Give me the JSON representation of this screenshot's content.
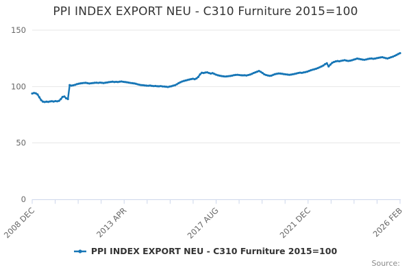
{
  "page": {
    "title": "PPI INDEX EXPORT NEU - C310 Furniture 2015=100",
    "source_label": "Source:"
  },
  "legend": {
    "label": "PPI INDEX EXPORT NEU - C310 Furniture 2015=100"
  },
  "chart_data": {
    "type": "line",
    "title": "PPI INDEX EXPORT NEU - C310 Furniture 2015=100",
    "xlabel": "",
    "ylabel": "",
    "ylim": [
      0,
      150
    ],
    "y_ticks": [
      0,
      50,
      100,
      150
    ],
    "grid": true,
    "legend_position": "bottom",
    "x_tick_labels": [
      "2008 DEC",
      "2013 APR",
      "2017 AUG",
      "2021 DEC",
      "2026 FEB"
    ],
    "minor_tick_intervals": 16,
    "series": [
      {
        "name": "PPI INDEX EXPORT NEU - C310 Furniture 2015=100",
        "color": "#1776b6",
        "frequency": "monthly",
        "start": "2008 DEC",
        "end": "2026 FEB",
        "values": [
          93.8,
          94.3,
          94.0,
          93.0,
          90.5,
          88.0,
          86.6,
          86.3,
          86.6,
          86.4,
          86.8,
          87.0,
          86.7,
          87.1,
          86.9,
          87.3,
          88.8,
          90.8,
          91.2,
          89.6,
          88.9,
          101.3,
          100.8,
          101.1,
          101.5,
          102.1,
          102.5,
          102.8,
          103.0,
          103.2,
          103.3,
          103.0,
          102.7,
          102.9,
          103.1,
          103.3,
          103.4,
          103.2,
          103.5,
          103.3,
          103.1,
          103.4,
          103.6,
          103.9,
          104.1,
          104.3,
          104.0,
          104.2,
          104.0,
          104.3,
          104.5,
          104.2,
          104.0,
          103.8,
          103.5,
          103.2,
          103.0,
          102.8,
          102.5,
          102.0,
          101.6,
          101.3,
          101.2,
          101.0,
          100.8,
          100.7,
          100.9,
          100.6,
          100.4,
          100.5,
          100.3,
          100.2,
          100.4,
          100.1,
          100.0,
          99.8,
          99.6,
          100.0,
          100.3,
          100.8,
          101.2,
          102.0,
          103.0,
          103.8,
          104.5,
          105.0,
          105.4,
          105.8,
          106.2,
          106.6,
          106.9,
          106.5,
          107.2,
          108.5,
          110.8,
          112.2,
          112.0,
          112.4,
          112.6,
          112.0,
          111.5,
          111.9,
          111.2,
          110.5,
          110.0,
          109.6,
          109.3,
          109.1,
          108.9,
          109.0,
          109.2,
          109.4,
          109.7,
          110.1,
          110.3,
          110.4,
          110.2,
          110.0,
          109.9,
          110.0,
          109.8,
          110.2,
          110.6,
          111.2,
          112.0,
          112.6,
          113.2,
          113.8,
          113.0,
          112.0,
          110.8,
          110.2,
          109.8,
          109.5,
          109.7,
          110.4,
          111.0,
          111.3,
          111.6,
          111.5,
          111.3,
          111.0,
          110.8,
          110.6,
          110.4,
          110.6,
          110.9,
          111.2,
          111.6,
          112.0,
          112.3,
          112.1,
          112.5,
          112.8,
          113.2,
          113.8,
          114.4,
          114.9,
          115.3,
          115.8,
          116.4,
          117.1,
          117.8,
          118.6,
          119.8,
          120.6,
          117.8,
          119.5,
          121.0,
          121.8,
          122.3,
          122.6,
          122.4,
          122.8,
          123.1,
          123.4,
          123.0,
          122.7,
          122.9,
          123.3,
          123.8,
          124.3,
          124.8,
          124.5,
          124.2,
          123.9,
          123.7,
          124.0,
          124.4,
          124.7,
          124.9,
          124.6,
          124.8,
          125.2,
          125.5,
          125.8,
          126.0,
          125.6,
          125.2,
          124.9,
          125.4,
          126.0,
          126.5,
          127.2,
          128.0,
          128.8,
          129.6
        ]
      }
    ],
    "colors": {
      "series": "#1776b6",
      "grid": "#e6e6e6",
      "axis": "#ccd6eb",
      "tick_label": "#666666",
      "title": "#333333",
      "source": "#888888"
    }
  }
}
